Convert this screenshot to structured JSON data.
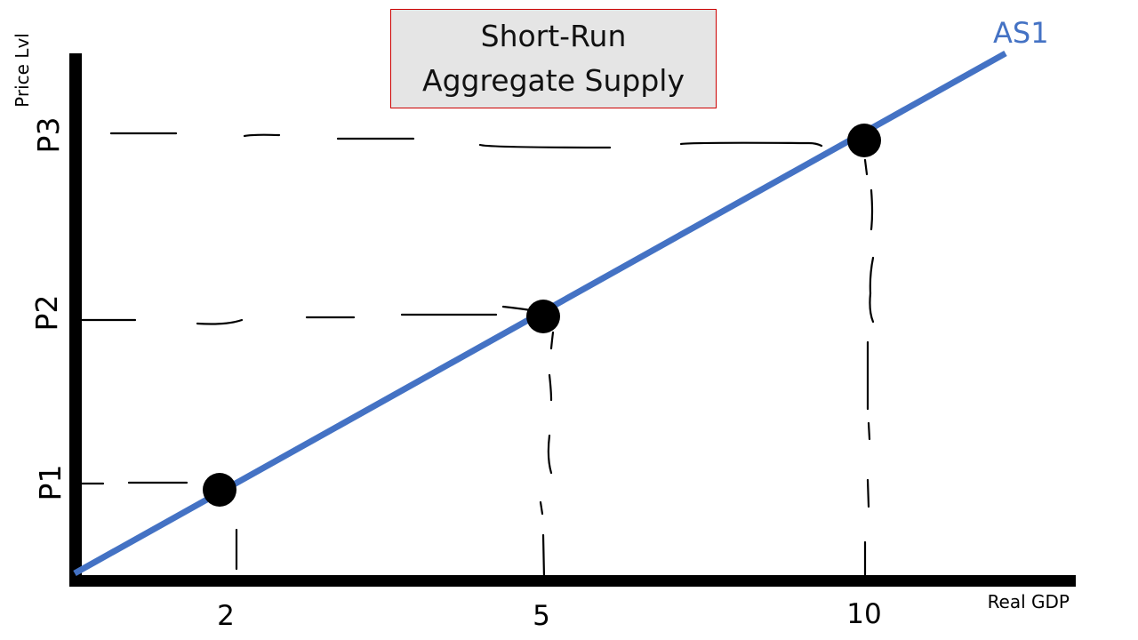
{
  "title": {
    "line1": "Short-Run",
    "line2": "Aggregate Supply"
  },
  "axes": {
    "x_label": "Real GDP",
    "y_label": "Price Lvl"
  },
  "curve": {
    "label": "AS1",
    "color": "#4472c4"
  },
  "chart_data": {
    "type": "line",
    "series": [
      {
        "name": "AS1",
        "points": [
          {
            "x": "2",
            "y": "P1"
          },
          {
            "x": "5",
            "y": "P2"
          },
          {
            "x": "10",
            "y": "P3"
          }
        ]
      }
    ],
    "x_ticks": [
      "2",
      "5",
      "10"
    ],
    "y_ticks": [
      "P1",
      "P2",
      "P3"
    ],
    "xlabel": "Real GDP",
    "ylabel": "Price Lvl"
  },
  "colors": {
    "axis": "#000000",
    "curve": "#4472c4",
    "point": "#000000",
    "title_border": "#cc0000",
    "title_background": "#e5e5e5"
  }
}
